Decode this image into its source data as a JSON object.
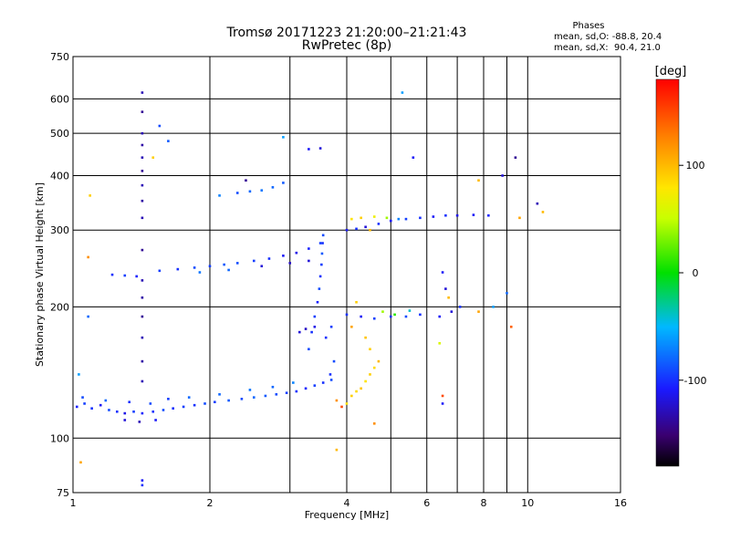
{
  "chart_data": {
    "type": "scatter",
    "title": "Tromsø 20171223 21:20:00–21:21:43",
    "subtitle": "RwPretec (8p)",
    "xlabel": "Frequency [MHz]",
    "ylabel": "Stationary phase Virtual Height [km]",
    "x_scale": "log",
    "y_scale": "log",
    "xlim": [
      1,
      16
    ],
    "ylim": [
      75,
      750
    ],
    "x_ticks": [
      1,
      2,
      4,
      6,
      8,
      10,
      16
    ],
    "x_tick_labels": [
      "1",
      "2",
      "4",
      "6",
      "8",
      "10",
      "16"
    ],
    "x_minor_gridlines": [
      3,
      5,
      7,
      9
    ],
    "y_ticks": [
      75,
      100,
      200,
      300,
      400,
      500,
      600,
      750
    ],
    "y_tick_labels": [
      "75",
      "100",
      "200",
      "300",
      "400",
      "500",
      "600",
      "750"
    ],
    "grid": true,
    "stats": {
      "heading": "Phases",
      "line_o": "mean, sd,O: -88.8, 20.4",
      "line_x": "mean, sd,X:  90.4, 21.0"
    },
    "colorbar": {
      "label": "[deg]",
      "range": [
        -180,
        180
      ],
      "ticks": [
        100,
        0,
        -100
      ],
      "tick_labels": [
        "100",
        "0",
        "-100"
      ],
      "colormap": "rainbow"
    },
    "series": [
      {
        "name": "",
        "points": [
          {
            "x": 1.02,
            "y": 118,
            "phase": -105
          },
          {
            "x": 1.06,
            "y": 120,
            "phase": -95
          },
          {
            "x": 1.1,
            "y": 117,
            "phase": -100
          },
          {
            "x": 1.15,
            "y": 119,
            "phase": -110
          },
          {
            "x": 1.2,
            "y": 116,
            "phase": -90
          },
          {
            "x": 1.25,
            "y": 115,
            "phase": -100
          },
          {
            "x": 1.3,
            "y": 114,
            "phase": -115
          },
          {
            "x": 1.36,
            "y": 115,
            "phase": -95
          },
          {
            "x": 1.42,
            "y": 114,
            "phase": -105
          },
          {
            "x": 1.5,
            "y": 115,
            "phase": -100
          },
          {
            "x": 1.58,
            "y": 116,
            "phase": -90
          },
          {
            "x": 1.66,
            "y": 117,
            "phase": -100
          },
          {
            "x": 1.75,
            "y": 118,
            "phase": -95
          },
          {
            "x": 1.85,
            "y": 119,
            "phase": -100
          },
          {
            "x": 1.95,
            "y": 120,
            "phase": -90
          },
          {
            "x": 2.05,
            "y": 121,
            "phase": -95
          },
          {
            "x": 2.2,
            "y": 122,
            "phase": -85
          },
          {
            "x": 2.35,
            "y": 123,
            "phase": -90
          },
          {
            "x": 2.5,
            "y": 124,
            "phase": -80
          },
          {
            "x": 2.65,
            "y": 125,
            "phase": -85
          },
          {
            "x": 2.8,
            "y": 126,
            "phase": -90
          },
          {
            "x": 2.95,
            "y": 127,
            "phase": -95
          },
          {
            "x": 3.1,
            "y": 128,
            "phase": -100
          },
          {
            "x": 3.25,
            "y": 130,
            "phase": -105
          },
          {
            "x": 3.4,
            "y": 132,
            "phase": -95
          },
          {
            "x": 3.55,
            "y": 134,
            "phase": -100
          },
          {
            "x": 3.7,
            "y": 136,
            "phase": -90
          },
          {
            "x": 1.05,
            "y": 124,
            "phase": -90
          },
          {
            "x": 1.18,
            "y": 122,
            "phase": -80
          },
          {
            "x": 1.33,
            "y": 121,
            "phase": -100
          },
          {
            "x": 1.48,
            "y": 120,
            "phase": -90
          },
          {
            "x": 1.62,
            "y": 123,
            "phase": -95
          },
          {
            "x": 1.8,
            "y": 124,
            "phase": -80
          },
          {
            "x": 2.1,
            "y": 126,
            "phase": -80
          },
          {
            "x": 2.45,
            "y": 129,
            "phase": -75
          },
          {
            "x": 2.75,
            "y": 131,
            "phase": -80
          },
          {
            "x": 3.05,
            "y": 134,
            "phase": -70
          },
          {
            "x": 1.3,
            "y": 110,
            "phase": -120
          },
          {
            "x": 1.4,
            "y": 109,
            "phase": -130
          },
          {
            "x": 1.52,
            "y": 110,
            "phase": -110
          },
          {
            "x": 3.3,
            "y": 160,
            "phase": -90
          },
          {
            "x": 3.35,
            "y": 175,
            "phase": -100
          },
          {
            "x": 3.4,
            "y": 190,
            "phase": -95
          },
          {
            "x": 3.45,
            "y": 205,
            "phase": -105
          },
          {
            "x": 3.48,
            "y": 220,
            "phase": -90
          },
          {
            "x": 3.5,
            "y": 235,
            "phase": -100
          },
          {
            "x": 3.52,
            "y": 250,
            "phase": -95
          },
          {
            "x": 3.53,
            "y": 265,
            "phase": -85
          },
          {
            "x": 3.54,
            "y": 280,
            "phase": -100
          },
          {
            "x": 3.55,
            "y": 292,
            "phase": -90
          },
          {
            "x": 3.15,
            "y": 175,
            "phase": -120
          },
          {
            "x": 3.25,
            "y": 178,
            "phase": -125
          },
          {
            "x": 3.4,
            "y": 180,
            "phase": -115
          },
          {
            "x": 3.6,
            "y": 170,
            "phase": -100
          },
          {
            "x": 3.7,
            "y": 180,
            "phase": -95
          },
          {
            "x": 3.75,
            "y": 150,
            "phase": -90
          },
          {
            "x": 3.68,
            "y": 140,
            "phase": -100
          },
          {
            "x": 1.55,
            "y": 242,
            "phase": -95
          },
          {
            "x": 1.7,
            "y": 244,
            "phase": -100
          },
          {
            "x": 1.85,
            "y": 246,
            "phase": -90
          },
          {
            "x": 2.0,
            "y": 248,
            "phase": -95
          },
          {
            "x": 2.15,
            "y": 250,
            "phase": -85
          },
          {
            "x": 2.3,
            "y": 252,
            "phase": -90
          },
          {
            "x": 2.5,
            "y": 255,
            "phase": -95
          },
          {
            "x": 2.7,
            "y": 258,
            "phase": -100
          },
          {
            "x": 2.9,
            "y": 262,
            "phase": -110
          },
          {
            "x": 3.1,
            "y": 266,
            "phase": -115
          },
          {
            "x": 3.3,
            "y": 272,
            "phase": -105
          },
          {
            "x": 3.5,
            "y": 280,
            "phase": -95
          },
          {
            "x": 1.9,
            "y": 240,
            "phase": -75
          },
          {
            "x": 2.2,
            "y": 243,
            "phase": -80
          },
          {
            "x": 2.6,
            "y": 248,
            "phase": -120
          },
          {
            "x": 3.0,
            "y": 252,
            "phase": -125
          },
          {
            "x": 3.3,
            "y": 255,
            "phase": -120
          },
          {
            "x": 1.22,
            "y": 237,
            "phase": -100
          },
          {
            "x": 1.3,
            "y": 236,
            "phase": -95
          },
          {
            "x": 1.38,
            "y": 235,
            "phase": -105
          },
          {
            "x": 1.42,
            "y": 620,
            "phase": -130
          },
          {
            "x": 1.42,
            "y": 560,
            "phase": -140
          },
          {
            "x": 1.42,
            "y": 500,
            "phase": -130
          },
          {
            "x": 1.42,
            "y": 470,
            "phase": -135
          },
          {
            "x": 1.42,
            "y": 440,
            "phase": -130
          },
          {
            "x": 1.42,
            "y": 410,
            "phase": -140
          },
          {
            "x": 1.42,
            "y": 380,
            "phase": -130
          },
          {
            "x": 1.42,
            "y": 350,
            "phase": -135
          },
          {
            "x": 1.42,
            "y": 320,
            "phase": -130
          },
          {
            "x": 1.42,
            "y": 270,
            "phase": -140
          },
          {
            "x": 1.42,
            "y": 230,
            "phase": -130
          },
          {
            "x": 1.42,
            "y": 210,
            "phase": -135
          },
          {
            "x": 1.42,
            "y": 190,
            "phase": -140
          },
          {
            "x": 1.42,
            "y": 170,
            "phase": -130
          },
          {
            "x": 1.42,
            "y": 150,
            "phase": -135
          },
          {
            "x": 1.42,
            "y": 135,
            "phase": -130
          },
          {
            "x": 1.42,
            "y": 80,
            "phase": -110
          },
          {
            "x": 1.42,
            "y": 78,
            "phase": -100
          },
          {
            "x": 1.55,
            "y": 520,
            "phase": -90
          },
          {
            "x": 1.62,
            "y": 480,
            "phase": -85
          },
          {
            "x": 1.5,
            "y": 440,
            "phase": 90
          },
          {
            "x": 2.3,
            "y": 365,
            "phase": -90
          },
          {
            "x": 2.45,
            "y": 368,
            "phase": -80
          },
          {
            "x": 2.6,
            "y": 370,
            "phase": -75
          },
          {
            "x": 2.75,
            "y": 376,
            "phase": -80
          },
          {
            "x": 2.9,
            "y": 385,
            "phase": -85
          },
          {
            "x": 2.1,
            "y": 360,
            "phase": -70
          },
          {
            "x": 3.3,
            "y": 460,
            "phase": -110
          },
          {
            "x": 3.5,
            "y": 462,
            "phase": -120
          },
          {
            "x": 2.9,
            "y": 490,
            "phase": -60
          },
          {
            "x": 5.6,
            "y": 440,
            "phase": -110
          },
          {
            "x": 5.3,
            "y": 620,
            "phase": -60
          },
          {
            "x": 2.4,
            "y": 390,
            "phase": -140
          },
          {
            "x": 4.0,
            "y": 300,
            "phase": -110
          },
          {
            "x": 4.2,
            "y": 302,
            "phase": -100
          },
          {
            "x": 4.4,
            "y": 305,
            "phase": -120
          },
          {
            "x": 4.7,
            "y": 310,
            "phase": -100
          },
          {
            "x": 5.0,
            "y": 315,
            "phase": -110
          },
          {
            "x": 5.4,
            "y": 318,
            "phase": -95
          },
          {
            "x": 5.8,
            "y": 320,
            "phase": -100
          },
          {
            "x": 6.2,
            "y": 322,
            "phase": -110
          },
          {
            "x": 6.6,
            "y": 324,
            "phase": -100
          },
          {
            "x": 7.0,
            "y": 324,
            "phase": -115
          },
          {
            "x": 7.6,
            "y": 325,
            "phase": -110
          },
          {
            "x": 8.2,
            "y": 324,
            "phase": -105
          },
          {
            "x": 4.1,
            "y": 318,
            "phase": 80
          },
          {
            "x": 4.3,
            "y": 320,
            "phase": 90
          },
          {
            "x": 4.6,
            "y": 322,
            "phase": 70
          },
          {
            "x": 4.9,
            "y": 320,
            "phase": 40
          },
          {
            "x": 5.2,
            "y": 318,
            "phase": -70
          },
          {
            "x": 4.5,
            "y": 300,
            "phase": 100
          },
          {
            "x": 4.0,
            "y": 192,
            "phase": -100
          },
          {
            "x": 4.3,
            "y": 190,
            "phase": -110
          },
          {
            "x": 4.6,
            "y": 188,
            "phase": -95
          },
          {
            "x": 5.0,
            "y": 190,
            "phase": -100
          },
          {
            "x": 5.4,
            "y": 190,
            "phase": -90
          },
          {
            "x": 5.8,
            "y": 192,
            "phase": -100
          },
          {
            "x": 6.4,
            "y": 190,
            "phase": -110
          },
          {
            "x": 6.8,
            "y": 195,
            "phase": -120
          },
          {
            "x": 7.1,
            "y": 200,
            "phase": -100
          },
          {
            "x": 4.8,
            "y": 195,
            "phase": 40
          },
          {
            "x": 5.1,
            "y": 192,
            "phase": 10
          },
          {
            "x": 5.5,
            "y": 196,
            "phase": -40
          },
          {
            "x": 4.2,
            "y": 205,
            "phase": 90
          },
          {
            "x": 4.1,
            "y": 180,
            "phase": 110
          },
          {
            "x": 6.5,
            "y": 240,
            "phase": -110
          },
          {
            "x": 6.6,
            "y": 220,
            "phase": -120
          },
          {
            "x": 6.7,
            "y": 210,
            "phase": 100
          },
          {
            "x": 7.8,
            "y": 195,
            "phase": 110
          },
          {
            "x": 8.4,
            "y": 200,
            "phase": -60
          },
          {
            "x": 9.0,
            "y": 215,
            "phase": -80
          },
          {
            "x": 9.2,
            "y": 180,
            "phase": 140
          },
          {
            "x": 6.4,
            "y": 165,
            "phase": 60
          },
          {
            "x": 6.5,
            "y": 125,
            "phase": 150
          },
          {
            "x": 6.5,
            "y": 120,
            "phase": -110
          },
          {
            "x": 4.0,
            "y": 120,
            "phase": 80
          },
          {
            "x": 4.1,
            "y": 125,
            "phase": 90
          },
          {
            "x": 4.2,
            "y": 128,
            "phase": 85
          },
          {
            "x": 4.3,
            "y": 130,
            "phase": 95
          },
          {
            "x": 4.4,
            "y": 135,
            "phase": 80
          },
          {
            "x": 4.5,
            "y": 140,
            "phase": 90
          },
          {
            "x": 4.6,
            "y": 145,
            "phase": 85
          },
          {
            "x": 4.7,
            "y": 150,
            "phase": 100
          },
          {
            "x": 4.5,
            "y": 160,
            "phase": 90
          },
          {
            "x": 4.4,
            "y": 170,
            "phase": 95
          },
          {
            "x": 3.9,
            "y": 118,
            "phase": 150
          },
          {
            "x": 3.8,
            "y": 122,
            "phase": 120
          },
          {
            "x": 4.6,
            "y": 108,
            "phase": 120
          },
          {
            "x": 3.8,
            "y": 94,
            "phase": 100
          },
          {
            "x": 1.04,
            "y": 88,
            "phase": 110
          },
          {
            "x": 1.08,
            "y": 260,
            "phase": 120
          },
          {
            "x": 1.08,
            "y": 190,
            "phase": -80
          },
          {
            "x": 1.09,
            "y": 360,
            "phase": 90
          },
          {
            "x": 1.03,
            "y": 140,
            "phase": -60
          },
          {
            "x": 10.5,
            "y": 345,
            "phase": -130
          },
          {
            "x": 10.8,
            "y": 330,
            "phase": 100
          },
          {
            "x": 9.4,
            "y": 440,
            "phase": -140
          },
          {
            "x": 8.8,
            "y": 400,
            "phase": -120
          },
          {
            "x": 7.8,
            "y": 390,
            "phase": 100
          },
          {
            "x": 9.6,
            "y": 320,
            "phase": 110
          }
        ]
      }
    ]
  }
}
